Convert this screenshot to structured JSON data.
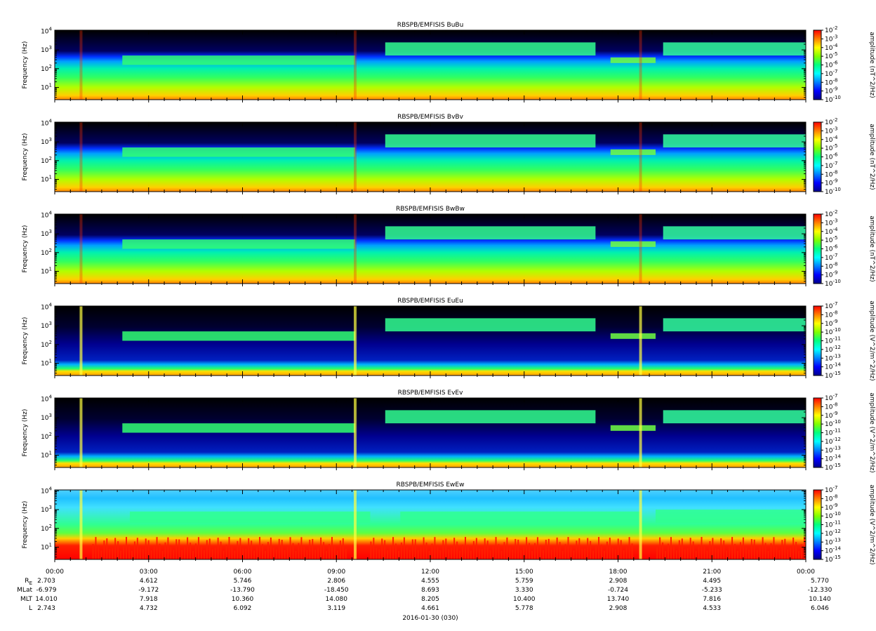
{
  "figure": {
    "date_label": "2016-01-30 (030)"
  },
  "chart_data": [
    {
      "type": "heatmap",
      "title": "RBSPB/EMFISIS  BuBu",
      "ylabel": "Frequency (Hz)",
      "yscale": "log",
      "yticks": [
        "10^1",
        "10^2",
        "10^3",
        "10^4"
      ],
      "colorbar": {
        "label": "amplitude (nT^2/Hz)",
        "exponents": [
          -2,
          -3,
          -4,
          -5,
          -6,
          -7,
          -8,
          -9,
          -10
        ]
      },
      "kind": "B",
      "line": "u"
    },
    {
      "type": "heatmap",
      "title": "RBSPB/EMFISIS  BvBv",
      "ylabel": "Frequency (Hz)",
      "yscale": "log",
      "yticks": [
        "10^1",
        "10^2",
        "10^3",
        "10^4"
      ],
      "colorbar": {
        "label": "amplitude (nT^2/Hz)",
        "exponents": [
          -2,
          -3,
          -4,
          -5,
          -6,
          -7,
          -8,
          -9,
          -10
        ]
      },
      "kind": "B",
      "line": "v"
    },
    {
      "type": "heatmap",
      "title": "RBSPB/EMFISIS  BwBw",
      "ylabel": "Frequency (Hz)",
      "yscale": "log",
      "yticks": [
        "10^1",
        "10^2",
        "10^3",
        "10^4"
      ],
      "colorbar": {
        "label": "amplitude (nT^2/Hz)",
        "exponents": [
          -2,
          -3,
          -4,
          -5,
          -6,
          -7,
          -8,
          -9,
          -10
        ]
      },
      "kind": "B",
      "line": "w"
    },
    {
      "type": "heatmap",
      "title": "RBSPB/EMFISIS  EuEu",
      "ylabel": "Frequency (Hz)",
      "yscale": "log",
      "yticks": [
        "10^1",
        "10^2",
        "10^3",
        "10^4"
      ],
      "colorbar": {
        "label": "amplitude (V^2/m^2/Hz)",
        "exponents": [
          -7,
          -8,
          -9,
          -10,
          -11,
          -12,
          -13,
          -14,
          -15
        ]
      },
      "kind": "E",
      "line": "u"
    },
    {
      "type": "heatmap",
      "title": "RBSPB/EMFISIS  EvEv",
      "ylabel": "Frequency (Hz)",
      "yscale": "log",
      "yticks": [
        "10^1",
        "10^2",
        "10^3",
        "10^4"
      ],
      "colorbar": {
        "label": "amplitude (V^2/m^2/Hz)",
        "exponents": [
          -7,
          -8,
          -9,
          -10,
          -11,
          -12,
          -13,
          -14,
          -15
        ]
      },
      "kind": "E",
      "line": "v"
    },
    {
      "type": "heatmap",
      "title": "RBSPB/EMFISIS  EwEw",
      "ylabel": "Frequency (Hz)",
      "yscale": "log",
      "yticks": [
        "10^1",
        "10^2",
        "10^3",
        "10^4"
      ],
      "colorbar": {
        "label": "amplitude (V^2/m^2/Hz)",
        "exponents": [
          -7,
          -8,
          -9,
          -10,
          -11,
          -12,
          -13,
          -14,
          -15
        ]
      },
      "kind": "Ew",
      "line": "w"
    }
  ],
  "x_axis": {
    "ticks": [
      "00:00",
      "03:00",
      "06:00",
      "09:00",
      "12:00",
      "15:00",
      "18:00",
      "21:00",
      "00:00"
    ],
    "minor_per_major": 6
  },
  "ephemeris": {
    "rows": [
      {
        "label_main": "R",
        "label_sub": "E",
        "values": [
          "2.703",
          "4.612",
          "5.746",
          "2.806",
          "4.555",
          "5.759",
          "2.908",
          "4.495",
          "5.770"
        ]
      },
      {
        "label_main": "MLat",
        "label_sub": "",
        "values": [
          "-6.979",
          "-9.172",
          "-13.790",
          "-18.450",
          "8.693",
          "3.330",
          "-0.724",
          "-5.233",
          "-12.330"
        ]
      },
      {
        "label_main": "MLT",
        "label_sub": "",
        "values": [
          "14.010",
          "7.918",
          "10.360",
          "14.080",
          "8.205",
          "10.400",
          "13.740",
          "7.816",
          "10.140"
        ]
      },
      {
        "label_main": "L",
        "label_sub": "",
        "values": [
          "2.743",
          "4.732",
          "6.092",
          "3.119",
          "4.661",
          "5.778",
          "2.908",
          "4.533",
          "6.046"
        ]
      }
    ]
  },
  "colorscale": [
    "#00008b",
    "#0000ff",
    "#0080ff",
    "#00ffff",
    "#00ff80",
    "#80ff00",
    "#ffff00",
    "#ff8000",
    "#ff0000"
  ]
}
